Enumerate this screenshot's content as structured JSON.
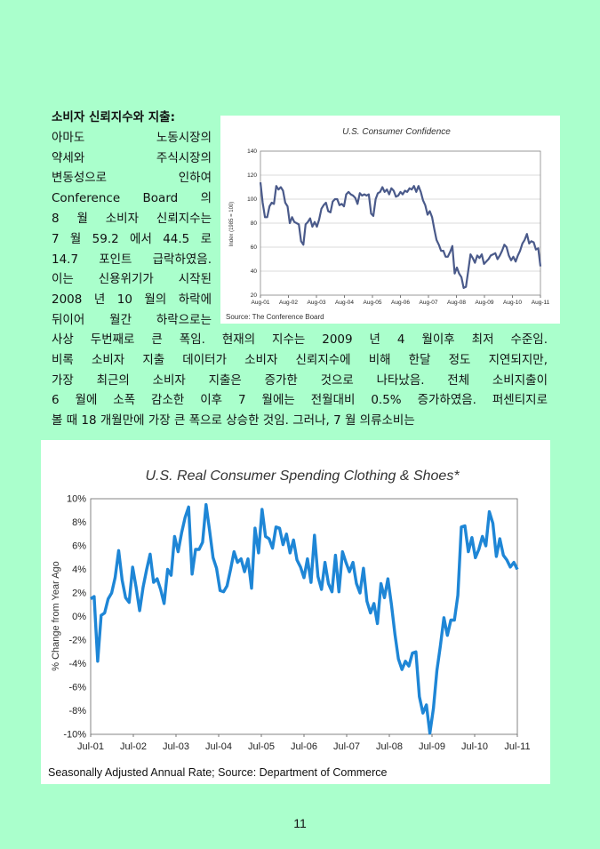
{
  "text": {
    "left_lines": [
      "소비자 신뢰지수와 지출:",
      "아마도    노동시장의",
      "약세와    주식시장의",
      "변동성으로    인하여",
      "Conference Board 의",
      "8 월 소비자 신뢰지수는",
      "7 월 59.2 에서 44.5 로",
      "14.7 포인트 급락하였음.",
      "이는 신용위기가 시작된",
      "2008 년 10 월의 하락에",
      "뒤이어 월간 하락으로는"
    ],
    "full_lines": [
      "사상 두번째로 큰 폭임.  현재의 지수는 2009 년 4 월이후 최저 수준임.",
      "비록 소비자 지출 데이터가 소비자 신뢰지수에 비해 한달 정도 지연되지만,",
      "가장 최근의 소비자 지출은 증가한 것으로 나타났음.  전체 소비지출이",
      "6 월에 소폭 감소한 이후 7 월에는 전월대비 0.5% 증가하였음.  퍼센티지로",
      "볼 때 18 개월만에 가장 큰 폭으로 상승한 것임.  그러나, 7 월 의류소비는"
    ]
  },
  "page_number": "11",
  "colors": {
    "background": "#aaffcc",
    "line1": "#4a5a8a",
    "line2": "#1e86d6"
  },
  "chart_data": [
    {
      "type": "line",
      "title": "U.S. Consumer Confidence",
      "ylabel": "Index (1985 = 100)",
      "source": "Source:  The Conference Board",
      "ylim": [
        20,
        140
      ],
      "yticks": [
        "20",
        "40",
        "60",
        "80",
        "100",
        "120",
        "140"
      ],
      "xticks": [
        "Aug-01",
        "Aug-02",
        "Aug-03",
        "Aug-04",
        "Aug-05",
        "Aug-06",
        "Aug-07",
        "Aug-08",
        "Aug-09",
        "Aug-10",
        "Aug-11"
      ],
      "grid": true,
      "series": [
        {
          "values": [
            114,
            97,
            85,
            85,
            94,
            97,
            96,
            111,
            108,
            110,
            107,
            97,
            94,
            80,
            85,
            81,
            80,
            79,
            65,
            62,
            79,
            81,
            84,
            77,
            81,
            77,
            83,
            92,
            95,
            97,
            90,
            89,
            98,
            100,
            100,
            95,
            96,
            94,
            104,
            106,
            104,
            103,
            101,
            96,
            105,
            103,
            104,
            103,
            104,
            88,
            86,
            100,
            105,
            106,
            110,
            106,
            108,
            104,
            109,
            107,
            102,
            103,
            106,
            104,
            107,
            106,
            109,
            108,
            111,
            106,
            111,
            106,
            99,
            95,
            87,
            90,
            85,
            75,
            66,
            62,
            57,
            57,
            52,
            52,
            56,
            61,
            38,
            43,
            38,
            35,
            26,
            27,
            40,
            54,
            51,
            47,
            53,
            51,
            54,
            46,
            48,
            50,
            53,
            54,
            55,
            50,
            53,
            57,
            62,
            60,
            53,
            49,
            52,
            48,
            53,
            57,
            63,
            66,
            71,
            63,
            65,
            64,
            58,
            59,
            44
          ]
        }
      ]
    },
    {
      "type": "line",
      "title": "U.S. Real Consumer Spending Clothing & Shoes*",
      "ylabel": "% Change from Year Ago",
      "source": "Seasonally Adjusted Annual Rate;  Source:  Department of Commerce",
      "ylim": [
        -10,
        10
      ],
      "yticks": [
        "-10%",
        "-8%",
        "-6%",
        "-4%",
        "-2%",
        "0%",
        "2%",
        "4%",
        "6%",
        "8%",
        "10%"
      ],
      "xticks": [
        "Jul-01",
        "Jul-02",
        "Jul-03",
        "Jul-04",
        "Jul-05",
        "Jul-06",
        "Jul-07",
        "Jul-08",
        "Jul-09",
        "Jul-10",
        "Jul-11"
      ],
      "grid": false,
      "series": [
        {
          "values": [
            1.5,
            1.7,
            -3.8,
            0.1,
            0.3,
            1.5,
            2.0,
            3.3,
            5.6,
            3.1,
            1.6,
            1.2,
            4.2,
            2.5,
            0.5,
            2.5,
            4.0,
            5.3,
            2.9,
            3.2,
            2.3,
            1.1,
            4.0,
            3.5,
            6.8,
            5.5,
            7.1,
            8.4,
            9.3,
            3.6,
            5.7,
            5.7,
            6.3,
            9.5,
            7.3,
            5.0,
            4.1,
            2.2,
            2.1,
            2.6,
            4.0,
            5.5,
            4.6,
            4.9,
            3.8,
            4.9,
            2.4,
            7.5,
            5.4,
            9.1,
            6.8,
            6.6,
            5.8,
            7.6,
            7.5,
            6.1,
            7.0,
            5.4,
            6.5,
            4.8,
            4.2,
            3.3,
            4.9,
            2.9,
            6.9,
            3.4,
            2.3,
            4.6,
            2.8,
            2.1,
            5.2,
            2.1,
            5.5,
            4.6,
            3.8,
            4.6,
            2.8,
            2.0,
            4.1,
            1.3,
            0.3,
            1.1,
            -0.6,
            2.8,
            1.6,
            3.2,
            1.0,
            -1.5,
            -3.6,
            -4.5,
            -3.8,
            -4.2,
            -3.1,
            -3.0,
            -6.8,
            -8.2,
            -7.5,
            -9.9,
            -7.8,
            -4.6,
            -2.5,
            -0.1,
            -1.6,
            -0.3,
            -0.3,
            1.8,
            7.6,
            7.7,
            5.5,
            6.7,
            5.0,
            5.7,
            6.8,
            6.0,
            8.9,
            7.9,
            5.1,
            6.6,
            5.2,
            4.8,
            4.2,
            4.6,
            4.0
          ]
        }
      ]
    }
  ]
}
